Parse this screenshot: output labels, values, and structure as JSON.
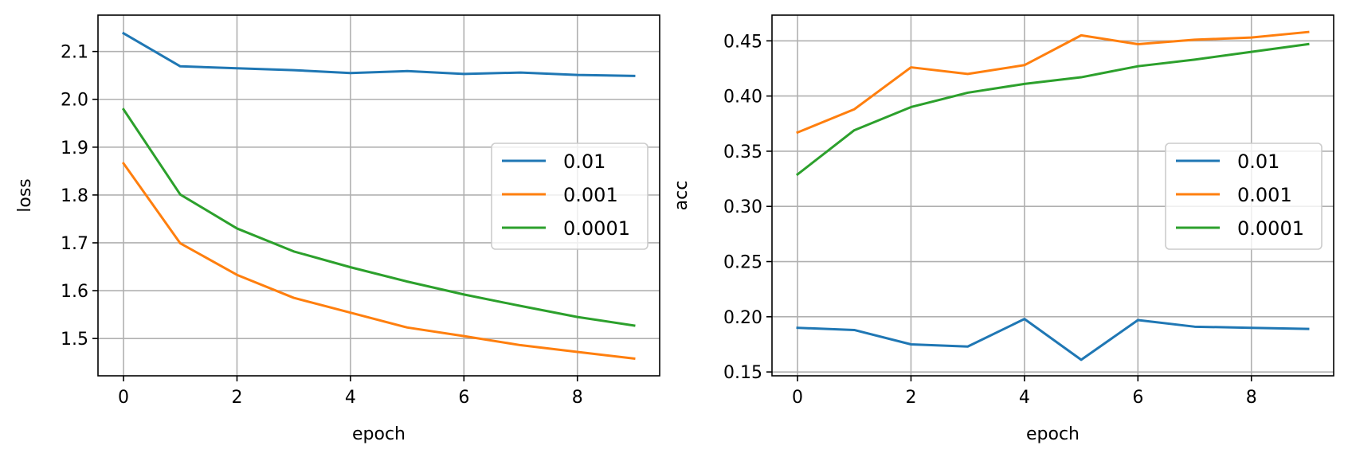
{
  "chart_data": [
    {
      "type": "line",
      "title": "",
      "xlabel": "epoch",
      "ylabel": "loss",
      "x": [
        0,
        1,
        2,
        3,
        4,
        5,
        6,
        7,
        8,
        9
      ],
      "xlim": [
        -0.45,
        9.45
      ],
      "ylim": [
        1.422,
        2.176
      ],
      "xticks": [
        0,
        2,
        4,
        6,
        8
      ],
      "xtick_labels": [
        "0",
        "2",
        "4",
        "6",
        "8"
      ],
      "yticks": [
        1.5,
        1.6,
        1.7,
        1.8,
        1.9,
        2.0,
        2.1
      ],
      "ytick_labels": [
        "1.5",
        "1.6",
        "1.7",
        "1.8",
        "1.9",
        "2.0",
        "2.1"
      ],
      "grid": true,
      "legend_position": "center-right",
      "series": [
        {
          "name": "0.01",
          "color": "#1f77b4",
          "values": [
            2.138,
            2.069,
            2.065,
            2.061,
            2.055,
            2.059,
            2.053,
            2.056,
            2.051,
            2.049
          ]
        },
        {
          "name": "0.001",
          "color": "#ff7f0e",
          "values": [
            1.866,
            1.699,
            1.633,
            1.585,
            1.554,
            1.523,
            1.505,
            1.486,
            1.472,
            1.458
          ]
        },
        {
          "name": "0.0001",
          "color": "#2ca02c",
          "values": [
            1.979,
            1.801,
            1.73,
            1.682,
            1.649,
            1.619,
            1.592,
            1.568,
            1.545,
            1.527
          ]
        }
      ]
    },
    {
      "type": "line",
      "title": "",
      "xlabel": "epoch",
      "ylabel": "acc",
      "x": [
        0,
        1,
        2,
        3,
        4,
        5,
        6,
        7,
        8,
        9
      ],
      "xlim": [
        -0.45,
        9.45
      ],
      "ylim": [
        0.1465,
        0.4733
      ],
      "xticks": [
        0,
        2,
        4,
        6,
        8
      ],
      "xtick_labels": [
        "0",
        "2",
        "4",
        "6",
        "8"
      ],
      "yticks": [
        0.15,
        0.2,
        0.25,
        0.3,
        0.35,
        0.4,
        0.45
      ],
      "ytick_labels": [
        "0.15",
        "0.20",
        "0.25",
        "0.30",
        "0.35",
        "0.40",
        "0.45"
      ],
      "grid": true,
      "legend_position": "center-right",
      "series": [
        {
          "name": "0.01",
          "color": "#1f77b4",
          "values": [
            0.19,
            0.188,
            0.175,
            0.173,
            0.198,
            0.161,
            0.197,
            0.191,
            0.19,
            0.189
          ]
        },
        {
          "name": "0.001",
          "color": "#ff7f0e",
          "values": [
            0.367,
            0.388,
            0.426,
            0.42,
            0.428,
            0.455,
            0.447,
            0.451,
            0.453,
            0.458
          ]
        },
        {
          "name": "0.0001",
          "color": "#2ca02c",
          "values": [
            0.329,
            0.369,
            0.39,
            0.403,
            0.411,
            0.417,
            0.427,
            0.433,
            0.44,
            0.447
          ]
        }
      ]
    }
  ]
}
